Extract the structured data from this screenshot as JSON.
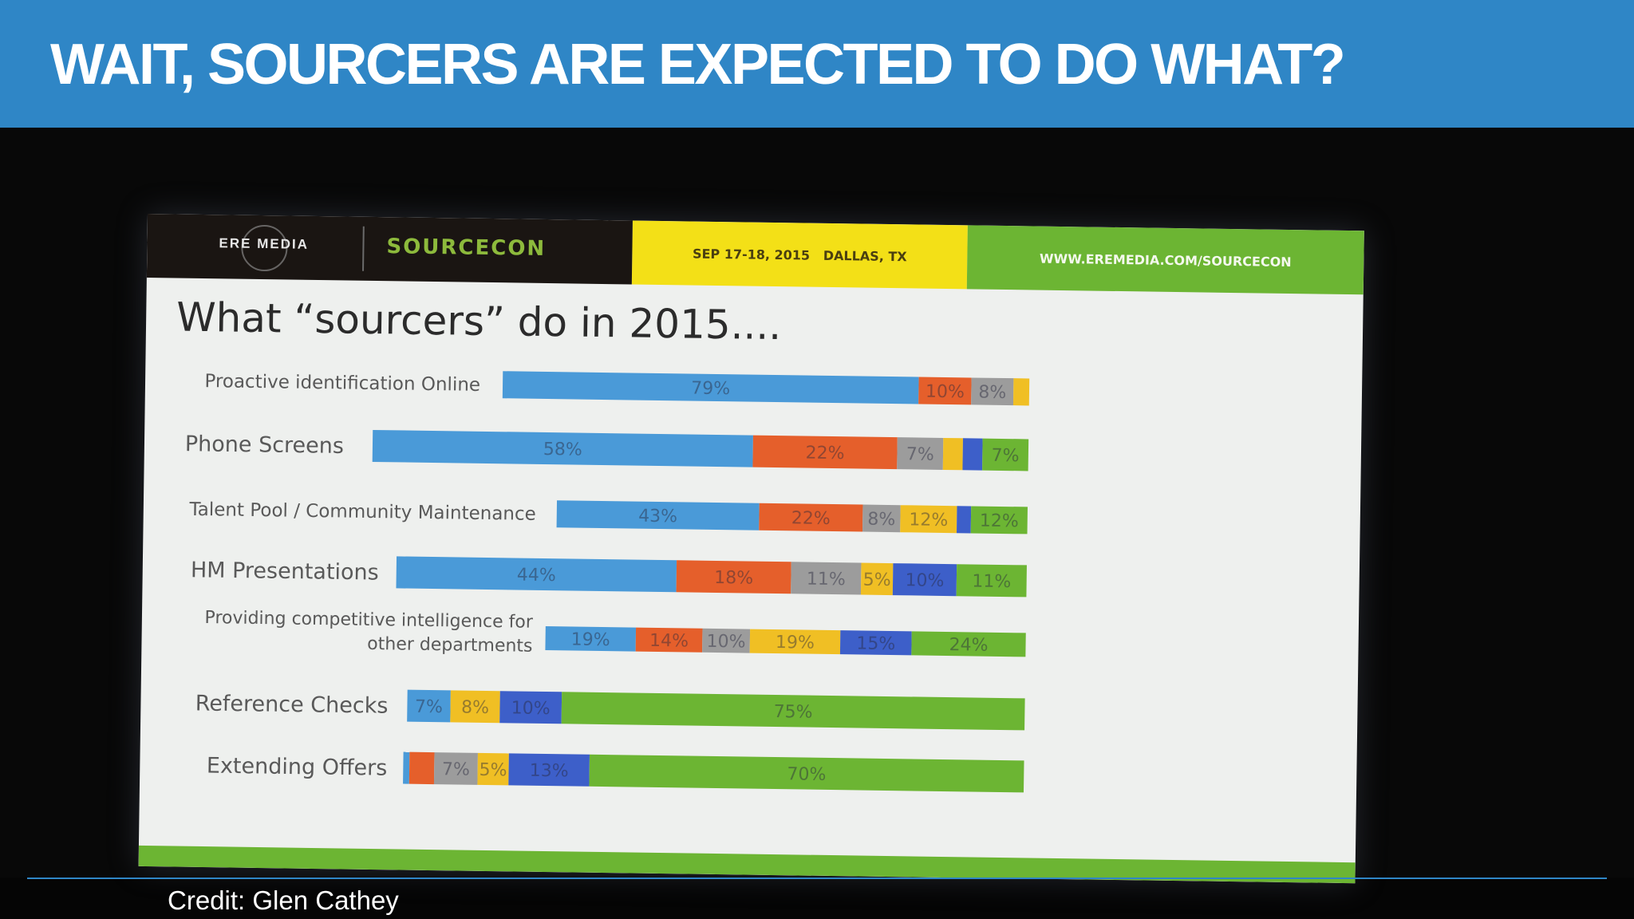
{
  "header": {
    "title": "WAIT, SOURCERS ARE EXPECTED TO DO WHAT?"
  },
  "slide": {
    "banner": {
      "logo": "ERE MEDIA",
      "conference": "SOURCECON",
      "date": "SEP 17-18, 2015   DALLAS, TX",
      "website": "WWW.EREMEDIA.COM/SOURCECON"
    },
    "title": "What “sourcers” do in 2015...."
  },
  "chart_data": {
    "type": "bar",
    "orientation": "horizontal",
    "stacked": true,
    "title": "What “sourcers” do in 2015....",
    "categories": [
      "Proactive identification Online",
      "Phone Screens",
      "Talent Pool / Community Maintenance",
      "HM Presentations",
      "Providing competitive intelligence for other departments",
      "Reference Checks",
      "Extending Offers"
    ],
    "series": [
      {
        "color": "#4a9ad8",
        "values": [
          79,
          58,
          43,
          44,
          19,
          7,
          1
        ]
      },
      {
        "color": "#e55f2b",
        "values": [
          10,
          22,
          22,
          18,
          14,
          0,
          4
        ]
      },
      {
        "color": "#9c9c9c",
        "values": [
          8,
          7,
          8,
          11,
          10,
          0,
          7
        ]
      },
      {
        "color": "#f0bf24",
        "values": [
          3,
          3,
          12,
          5,
          19,
          8,
          5
        ]
      },
      {
        "color": "#3d5fc9",
        "values": [
          0,
          3,
          3,
          10,
          15,
          10,
          13
        ]
      },
      {
        "color": "#6cb533",
        "values": [
          0,
          7,
          12,
          11,
          24,
          75,
          70
        ]
      }
    ],
    "data_labels": [
      [
        "79%",
        "10%",
        "8%",
        "",
        "",
        ""
      ],
      [
        "58%",
        "22%",
        "7%",
        "",
        "",
        "7%"
      ],
      [
        "43%",
        "22%",
        "8%",
        "12%",
        "",
        "12%"
      ],
      [
        "44%",
        "18%",
        "11%",
        "5%",
        "10%",
        "11%"
      ],
      [
        "19%",
        "14%",
        "10%",
        "19%",
        "15%",
        "24%"
      ],
      [
        "7%",
        "",
        "",
        "8%",
        "10%",
        "75%"
      ],
      [
        "",
        "",
        "7%",
        "5%",
        "13%",
        "70%"
      ]
    ]
  },
  "footer": {
    "credit": "Credit: Glen Cathey"
  }
}
